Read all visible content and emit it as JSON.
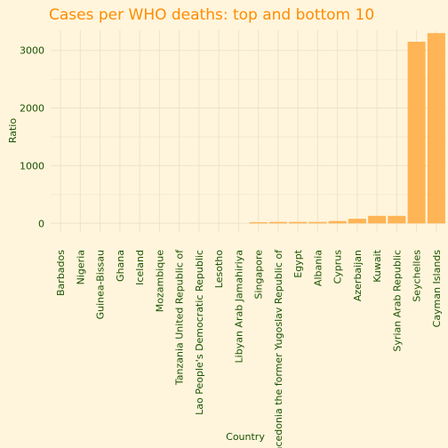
{
  "colors": {
    "background": "#fff5dc",
    "bar": "#ffb455",
    "title": "#ff8c00",
    "text": "#1a5200",
    "grid": "#ede3c8"
  },
  "chart_data": {
    "type": "bar",
    "title": "Cases per WHO deaths: top and bottom 10",
    "xlabel": "Country",
    "ylabel": "Ratio",
    "ylim": [
      -150,
      3350
    ],
    "yticks": [
      0,
      1000,
      2000,
      3000
    ],
    "grid": true,
    "legend": "none",
    "categories": [
      "Barbados",
      "Nigeria",
      "Guinea-Bissau",
      "Ghana",
      "Iceland",
      "Mozambique",
      "Tanzania United Republic of",
      "Lao People's Democratic Republic",
      "Lesotho",
      "Libyan Arab Jamahiriya",
      "Singapore",
      "Macedonia the former Yugoslav Republic of",
      "Egypt",
      "Albania",
      "Cyprus",
      "Azerbaijan",
      "Kuwait",
      "Syrian Arab Republic",
      "Seychelles",
      "Cayman Islands"
    ],
    "values": [
      0,
      0,
      0,
      0,
      0,
      0,
      0,
      0,
      0,
      0,
      20,
      25,
      25,
      25,
      40,
      80,
      130,
      130,
      3150,
      3300
    ]
  }
}
